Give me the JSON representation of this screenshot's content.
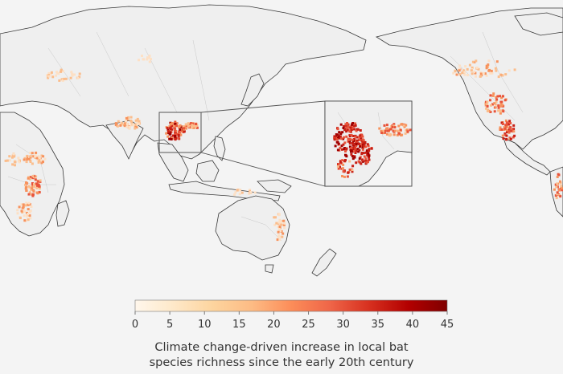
{
  "legend": {
    "ticks": [
      "0",
      "5",
      "10",
      "15",
      "20",
      "25",
      "30",
      "35",
      "40",
      "45"
    ],
    "range": [
      0,
      45
    ],
    "colors": [
      "#fff7ec",
      "#fee8c8",
      "#fdd49e",
      "#fdbb84",
      "#fc8d59",
      "#ef6548",
      "#d7301f",
      "#b30000",
      "#7f0000"
    ],
    "title_line1": "Climate change-driven increase in local bat",
    "title_line2": "species richness since the early 20th century"
  },
  "map": {
    "hotspot_colors": [
      "#fde0c5",
      "#fbbd8c",
      "#f7925d",
      "#e8533a",
      "#c81e14",
      "#a00000"
    ],
    "land_color": "#efefef",
    "coast_color": "#3a3a3a"
  }
}
